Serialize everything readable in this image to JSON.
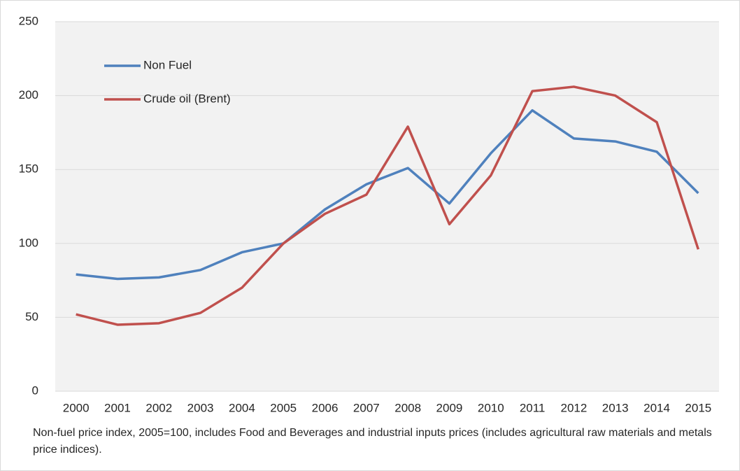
{
  "chart_data": {
    "type": "line",
    "categories": [
      "2000",
      "2001",
      "2002",
      "2003",
      "2004",
      "2005",
      "2006",
      "2007",
      "2008",
      "2009",
      "2010",
      "2011",
      "2012",
      "2013",
      "2014",
      "2015"
    ],
    "series": [
      {
        "name": "Non Fuel",
        "color": "#4f81bd",
        "values": [
          79,
          76,
          77,
          82,
          94,
          100,
          123,
          140,
          151,
          127,
          161,
          190,
          171,
          169,
          162,
          134
        ]
      },
      {
        "name": "Crude oil (Brent)",
        "color": "#c0504d",
        "values": [
          52,
          45,
          46,
          53,
          70,
          100,
          120,
          133,
          179,
          113,
          146,
          203,
          206,
          200,
          182,
          96
        ]
      }
    ],
    "ylim": [
      0,
      250
    ],
    "yticks": [
      0,
      50,
      100,
      150,
      200,
      250
    ],
    "grid": true,
    "legend": "upper left",
    "note": "Non-fuel price index, 2005=100, includes Food and Beverages and industrial inputs prices (includes agricultural raw materials and metals price indices)."
  }
}
